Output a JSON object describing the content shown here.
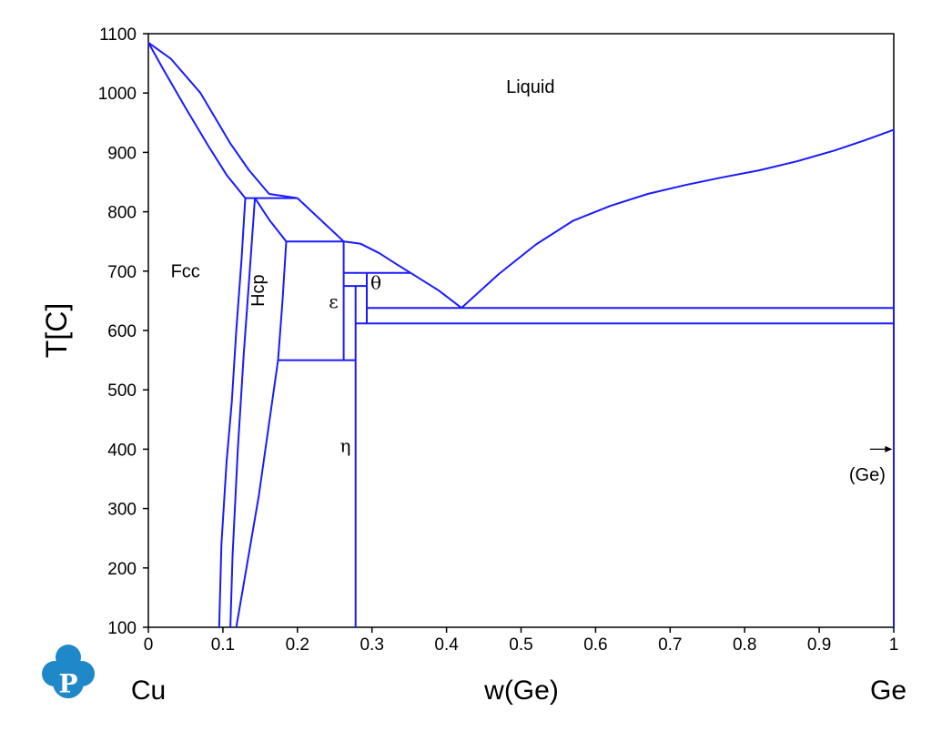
{
  "chart_data": {
    "type": "line",
    "title": "",
    "xlabel": "w(Ge)",
    "ylabel": "T[C]",
    "xlim": [
      0,
      1
    ],
    "ylim": [
      100,
      1100
    ],
    "x_ticks": [
      "0",
      "0.1",
      "0.2",
      "0.3",
      "0.4",
      "0.5",
      "0.6",
      "0.7",
      "0.8",
      "0.9",
      "1"
    ],
    "y_ticks": [
      "100",
      "200",
      "300",
      "400",
      "500",
      "600",
      "700",
      "800",
      "900",
      "1000",
      "1100"
    ],
    "components": {
      "left": "Cu",
      "right": "Ge"
    },
    "line_color": "#1a1aff",
    "grid": false,
    "region_labels": [
      {
        "text": "Liquid",
        "x": 0.48,
        "y": 1000
      },
      {
        "text": "Fcc",
        "x": 0.03,
        "y": 690
      },
      {
        "text": "Hcp",
        "x": 0.155,
        "y": 640,
        "rotate": -90
      },
      {
        "text": "ε",
        "x": 0.242,
        "y": 638,
        "greek": true
      },
      {
        "text": "θ",
        "x": 0.298,
        "y": 670,
        "greek": true
      },
      {
        "text": "η",
        "x": 0.257,
        "y": 395,
        "greek": true
      },
      {
        "text": "(Ge)",
        "x": 0.94,
        "y": 347
      }
    ],
    "annotations": [
      {
        "type": "arrow",
        "from": [
          0.968,
          400
        ],
        "to": [
          0.998,
          400
        ]
      }
    ],
    "series": [
      {
        "points": [
          [
            0.0,
            1085
          ],
          [
            0.03,
            1058
          ],
          [
            0.07,
            1000
          ],
          [
            0.11,
            915
          ],
          [
            0.135,
            870
          ],
          [
            0.162,
            830
          ],
          [
            0.2,
            823
          ]
        ]
      },
      {
        "points": [
          [
            0.0,
            1085
          ],
          [
            0.02,
            1040
          ],
          [
            0.05,
            975
          ],
          [
            0.08,
            912
          ],
          [
            0.105,
            862
          ],
          [
            0.13,
            823
          ]
        ]
      },
      {
        "points": [
          [
            0.13,
            823
          ],
          [
            0.2,
            823
          ]
        ]
      },
      {
        "points": [
          [
            0.13,
            823
          ],
          [
            0.125,
            720
          ],
          [
            0.118,
            600
          ],
          [
            0.112,
            480
          ],
          [
            0.105,
            380
          ],
          [
            0.098,
            240
          ],
          [
            0.095,
            100
          ]
        ]
      },
      {
        "points": [
          [
            0.143,
            823
          ],
          [
            0.136,
            700
          ],
          [
            0.128,
            560
          ],
          [
            0.12,
            400
          ],
          [
            0.113,
            220
          ],
          [
            0.11,
            100
          ]
        ]
      },
      {
        "points": [
          [
            0.143,
            823
          ],
          [
            0.163,
            785
          ],
          [
            0.185,
            750
          ]
        ]
      },
      {
        "points": [
          [
            0.2,
            823
          ],
          [
            0.262,
            750
          ]
        ]
      },
      {
        "points": [
          [
            0.185,
            750
          ],
          [
            0.262,
            750
          ]
        ]
      },
      {
        "points": [
          [
            0.185,
            750
          ],
          [
            0.18,
            650
          ],
          [
            0.174,
            550
          ]
        ]
      },
      {
        "points": [
          [
            0.174,
            550
          ],
          [
            0.148,
            320
          ],
          [
            0.118,
            100
          ]
        ]
      },
      {
        "points": [
          [
            0.174,
            550
          ],
          [
            0.278,
            550
          ]
        ]
      },
      {
        "points": [
          [
            0.262,
            750
          ],
          [
            0.262,
            550
          ]
        ]
      },
      {
        "points": [
          [
            0.262,
            750
          ],
          [
            0.285,
            746
          ],
          [
            0.31,
            730
          ],
          [
            0.335,
            710
          ],
          [
            0.352,
            697
          ]
        ]
      },
      {
        "points": [
          [
            0.352,
            697
          ],
          [
            0.39,
            667
          ],
          [
            0.42,
            638
          ]
        ]
      },
      {
        "points": [
          [
            0.262,
            697
          ],
          [
            0.352,
            697
          ]
        ]
      },
      {
        "points": [
          [
            0.262,
            675
          ],
          [
            0.293,
            675
          ]
        ]
      },
      {
        "points": [
          [
            0.278,
            675
          ],
          [
            0.278,
            100
          ]
        ]
      },
      {
        "points": [
          [
            0.293,
            697
          ],
          [
            0.293,
            612
          ]
        ]
      },
      {
        "points": [
          [
            0.278,
            612
          ],
          [
            1.0,
            612
          ]
        ]
      },
      {
        "points": [
          [
            0.293,
            638
          ],
          [
            1.0,
            638
          ]
        ]
      },
      {
        "points": [
          [
            0.42,
            638
          ],
          [
            0.47,
            695
          ],
          [
            0.52,
            745
          ],
          [
            0.57,
            785
          ],
          [
            0.62,
            810
          ],
          [
            0.67,
            830
          ],
          [
            0.72,
            845
          ],
          [
            0.77,
            858
          ],
          [
            0.82,
            870
          ],
          [
            0.87,
            885
          ],
          [
            0.92,
            903
          ],
          [
            0.96,
            920
          ],
          [
            1.0,
            938
          ]
        ]
      },
      {
        "points": [
          [
            1.0,
            938
          ],
          [
            1.0,
            100
          ]
        ]
      }
    ]
  },
  "logo": {
    "text": "P",
    "color": "#1e88c8"
  }
}
